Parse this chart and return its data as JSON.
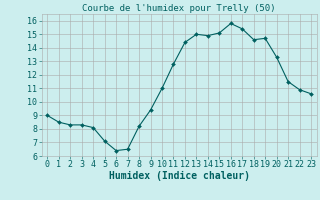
{
  "x": [
    0,
    1,
    2,
    3,
    4,
    5,
    6,
    7,
    8,
    9,
    10,
    11,
    12,
    13,
    14,
    15,
    16,
    17,
    18,
    19,
    20,
    21,
    22,
    23
  ],
  "y": [
    9.0,
    8.5,
    8.3,
    8.3,
    8.1,
    7.1,
    6.4,
    6.5,
    8.2,
    9.4,
    11.0,
    12.8,
    14.4,
    15.0,
    14.9,
    15.1,
    15.8,
    15.4,
    14.6,
    14.7,
    13.3,
    11.5,
    10.9,
    10.6
  ],
  "title": "Courbe de l'humidex pour Trelly (50)",
  "xlabel": "Humidex (Indice chaleur)",
  "xlim": [
    -0.5,
    23.5
  ],
  "ylim": [
    6,
    16.5
  ],
  "yticks": [
    6,
    7,
    8,
    9,
    10,
    11,
    12,
    13,
    14,
    15,
    16
  ],
  "xticks": [
    0,
    1,
    2,
    3,
    4,
    5,
    6,
    7,
    8,
    9,
    10,
    11,
    12,
    13,
    14,
    15,
    16,
    17,
    18,
    19,
    20,
    21,
    22,
    23
  ],
  "line_color": "#006060",
  "marker_color": "#006060",
  "bg_color": "#cceeee",
  "grid_color": "#aaaaaa",
  "xlabel_color": "#006060",
  "tick_color": "#006060",
  "title_fontsize": 6.5,
  "xlabel_fontsize": 7,
  "tick_fontsize": 6
}
